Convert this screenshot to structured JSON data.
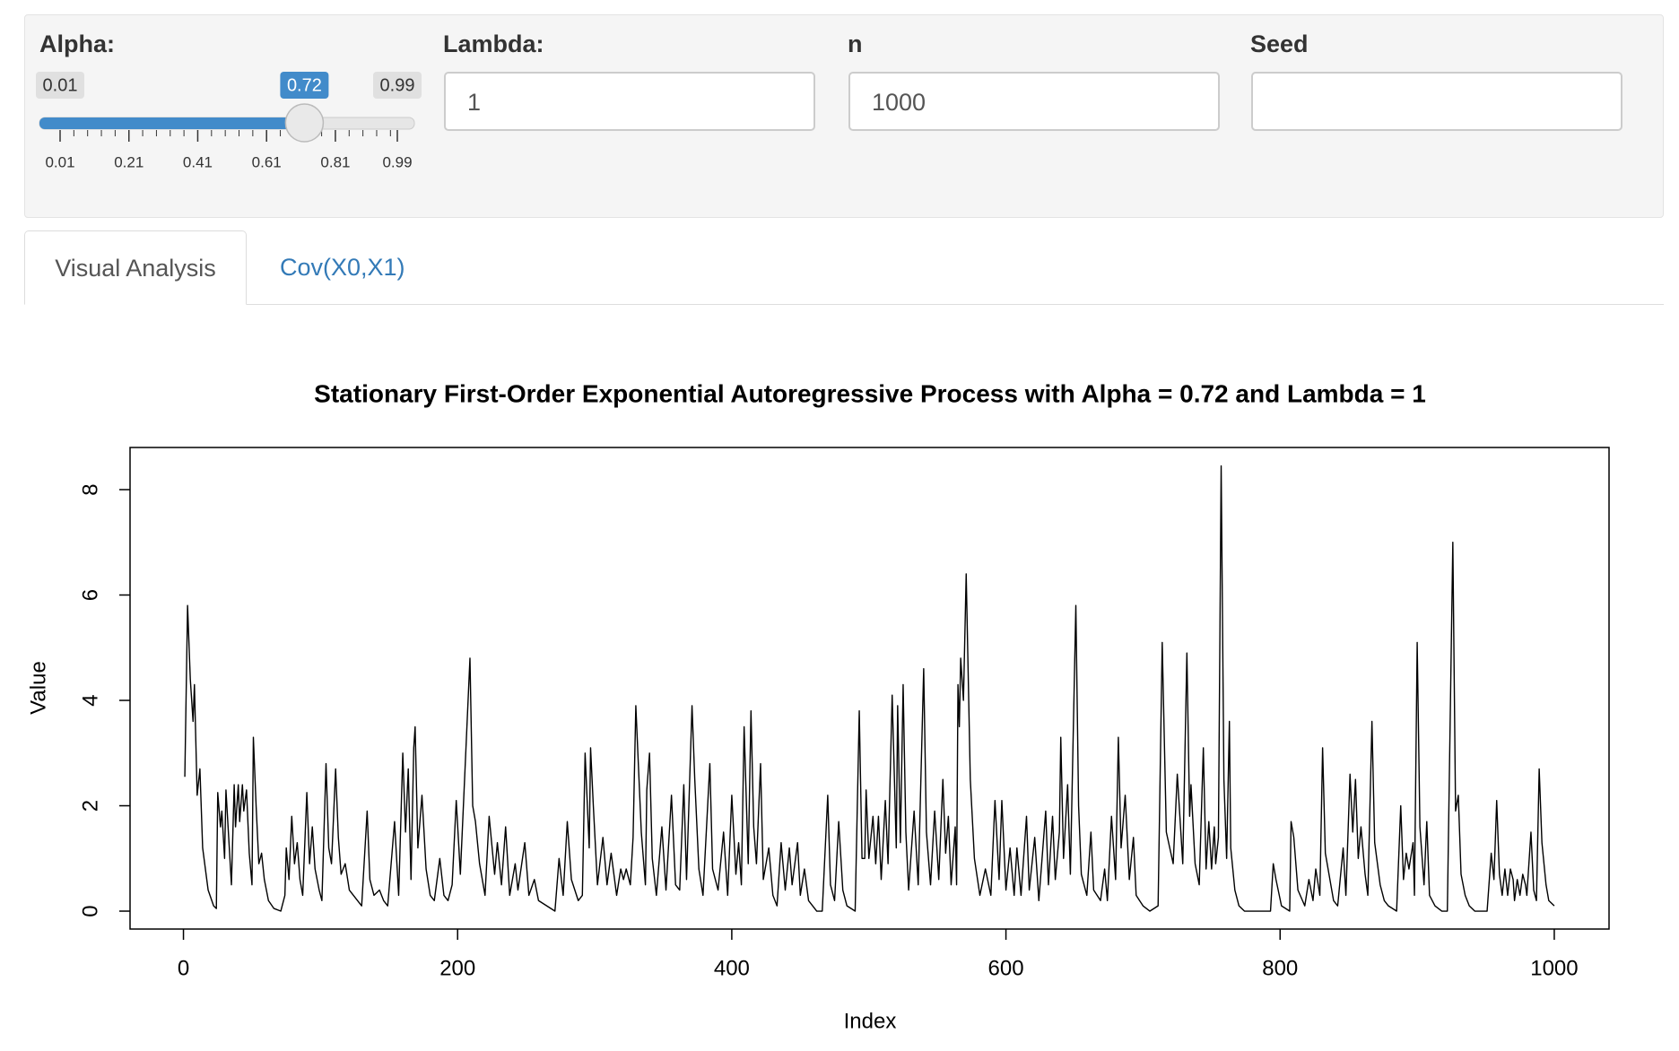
{
  "controls": {
    "alpha": {
      "label": "Alpha:",
      "min": 0.01,
      "max": 0.99,
      "value": 0.72,
      "ticks": [
        0.01,
        0.21,
        0.41,
        0.61,
        0.81,
        0.99
      ]
    },
    "lambda": {
      "label": "Lambda:",
      "value": "1"
    },
    "n": {
      "label": "n",
      "value": "1000"
    },
    "seed": {
      "label": "Seed"
    }
  },
  "tabs": [
    "Visual Analysis",
    "Cov(X0,X1)"
  ],
  "chart_data": {
    "type": "line",
    "title": "Stationary First-Order Exponential Autoregressive Process with Alpha = 0.72 and Lambda = 1",
    "xlabel": "Index",
    "ylabel": "Value",
    "color": "#000000",
    "xlim": [
      -38.96,
      1039.96
    ],
    "ylim": [
      -0.34,
      8.8
    ],
    "xticks": [
      0,
      200,
      400,
      600,
      800,
      1000
    ],
    "yticks": [
      0,
      2,
      4,
      6,
      8
    ],
    "x": [
      1,
      3,
      5,
      7,
      8,
      10,
      12,
      14,
      18,
      22,
      24,
      25,
      27,
      28,
      30,
      31,
      33,
      35,
      37,
      38,
      40,
      41,
      43,
      44,
      46,
      48,
      50,
      51,
      53,
      55,
      57,
      59,
      62,
      66,
      71,
      74,
      75,
      77,
      79,
      81,
      83,
      85,
      87,
      90,
      92,
      94,
      96,
      99,
      101,
      104,
      106,
      108,
      111,
      113,
      115,
      118,
      121,
      124,
      127,
      130,
      134,
      136,
      139,
      143,
      146,
      149,
      154,
      157,
      160,
      162,
      164,
      166,
      168,
      169,
      171,
      174,
      177,
      180,
      183,
      187,
      190,
      193,
      196,
      199,
      202,
      209,
      211,
      213,
      216,
      220,
      223,
      227,
      229,
      232,
      235,
      238,
      242,
      244,
      249,
      252,
      256,
      259,
      265,
      271,
      274,
      277,
      280,
      283,
      288,
      291,
      293,
      296,
      297,
      299,
      302,
      306,
      309,
      312,
      316,
      319,
      321,
      323,
      326,
      328,
      330,
      334,
      337,
      338,
      340,
      342,
      345,
      349,
      352,
      356,
      359,
      362,
      365,
      367,
      371,
      373,
      376,
      379,
      384,
      386,
      390,
      394,
      397,
      400,
      403,
      405,
      407,
      409,
      412,
      414,
      416,
      418,
      421,
      423,
      427,
      430,
      433,
      436,
      439,
      442,
      444,
      448,
      450,
      453,
      456,
      462,
      466,
      470,
      472,
      475,
      478,
      481,
      484,
      490,
      493,
      495,
      497,
      498,
      500,
      503,
      505,
      507,
      509,
      512,
      514,
      517,
      520,
      521,
      523,
      525,
      527,
      529,
      533,
      536,
      540,
      542,
      545,
      548,
      551,
      554,
      556,
      558,
      560,
      563,
      564,
      565,
      566,
      567,
      569,
      571,
      574,
      577,
      581,
      585,
      589,
      592,
      595,
      597,
      600,
      603,
      606,
      608,
      611,
      615,
      617,
      621,
      624,
      629,
      631,
      634,
      636,
      639,
      640,
      642,
      645,
      647,
      651,
      653,
      655,
      659,
      662,
      664,
      669,
      672,
      674,
      677,
      680,
      682,
      684,
      687,
      690,
      693,
      695,
      700,
      705,
      711,
      714,
      717,
      722,
      725,
      729,
      732,
      734,
      735,
      738,
      741,
      744,
      746,
      748,
      750,
      752,
      753,
      755,
      757,
      759,
      761,
      763,
      764,
      767,
      770,
      774,
      782,
      789,
      793,
      795,
      797,
      801,
      807,
      808,
      810,
      813,
      818,
      821,
      824,
      826,
      829,
      831,
      833,
      837,
      839,
      842,
      846,
      848,
      851,
      853,
      855,
      857,
      859,
      862,
      864,
      867,
      869,
      873,
      876,
      879,
      885,
      888,
      890,
      892,
      894,
      897,
      898,
      900,
      902,
      905,
      907,
      909,
      913,
      918,
      922,
      926,
      928,
      930,
      932,
      935,
      938,
      942,
      949,
      951,
      954,
      956,
      958,
      960,
      962,
      964,
      966,
      968,
      970,
      971,
      973,
      975,
      977,
      979,
      980,
      983,
      985,
      987,
      989,
      991,
      994,
      996,
      1000
    ],
    "values": [
      2.55,
      5.8,
      4.4,
      3.6,
      4.3,
      2.2,
      2.7,
      1.2,
      0.4,
      0.1,
      0.05,
      2.25,
      1.6,
      1.9,
      1.0,
      2.3,
      1.4,
      0.5,
      2.4,
      1.6,
      2.4,
      1.7,
      2.4,
      1.9,
      2.3,
      1.1,
      0.5,
      3.3,
      2.0,
      0.9,
      1.1,
      0.6,
      0.2,
      0.05,
      0.0,
      0.3,
      1.2,
      0.6,
      1.8,
      0.9,
      1.3,
      0.6,
      0.3,
      2.25,
      0.9,
      1.6,
      0.8,
      0.4,
      0.2,
      2.8,
      1.2,
      0.9,
      2.7,
      1.4,
      0.7,
      0.9,
      0.4,
      0.3,
      0.2,
      0.1,
      1.9,
      0.6,
      0.3,
      0.4,
      0.2,
      0.1,
      1.7,
      0.3,
      3.0,
      1.5,
      2.7,
      0.6,
      3.1,
      3.5,
      1.2,
      2.2,
      0.8,
      0.3,
      0.2,
      1.0,
      0.3,
      0.2,
      0.5,
      2.1,
      0.7,
      4.8,
      2.0,
      1.7,
      0.9,
      0.3,
      1.8,
      0.7,
      1.3,
      0.5,
      1.6,
      0.3,
      0.9,
      0.4,
      1.3,
      0.3,
      0.6,
      0.2,
      0.1,
      0.0,
      1.0,
      0.3,
      1.7,
      0.6,
      0.2,
      0.3,
      3.0,
      1.2,
      3.1,
      2.0,
      0.5,
      1.4,
      0.5,
      1.1,
      0.3,
      0.8,
      0.6,
      0.8,
      0.5,
      1.4,
      3.9,
      1.5,
      0.5,
      2.3,
      3.0,
      1.0,
      0.3,
      1.6,
      0.4,
      2.2,
      0.5,
      0.4,
      2.4,
      0.6,
      3.9,
      2.5,
      0.8,
      0.3,
      2.8,
      0.8,
      0.4,
      1.5,
      0.3,
      2.2,
      0.7,
      1.3,
      0.5,
      3.5,
      0.9,
      3.8,
      1.6,
      0.9,
      2.8,
      0.6,
      1.2,
      0.3,
      0.1,
      1.3,
      0.4,
      1.2,
      0.5,
      1.3,
      0.3,
      0.8,
      0.2,
      0.0,
      0.0,
      2.2,
      0.5,
      0.2,
      1.7,
      0.4,
      0.1,
      0.0,
      3.8,
      1.0,
      1.0,
      2.3,
      1.0,
      1.8,
      0.9,
      1.8,
      0.6,
      2.1,
      0.9,
      4.1,
      1.2,
      3.9,
      1.3,
      4.3,
      1.5,
      0.4,
      1.9,
      0.5,
      4.6,
      1.5,
      0.5,
      1.9,
      0.6,
      2.5,
      1.1,
      1.8,
      0.5,
      1.6,
      0.5,
      4.3,
      3.5,
      4.8,
      4.0,
      6.4,
      2.5,
      1.0,
      0.3,
      0.8,
      0.3,
      2.1,
      0.6,
      2.1,
      0.4,
      1.2,
      0.3,
      1.2,
      0.3,
      1.8,
      0.4,
      1.4,
      0.2,
      1.9,
      0.5,
      1.8,
      0.6,
      1.5,
      3.3,
      1.0,
      2.4,
      0.7,
      5.8,
      2.0,
      0.7,
      0.3,
      1.5,
      0.4,
      0.2,
      0.8,
      0.2,
      1.8,
      0.6,
      3.3,
      1.2,
      2.2,
      0.6,
      1.4,
      0.3,
      0.1,
      0.0,
      0.1,
      5.1,
      1.5,
      0.9,
      2.6,
      0.9,
      4.9,
      1.8,
      2.4,
      0.9,
      0.5,
      3.1,
      0.8,
      1.7,
      0.8,
      1.6,
      0.9,
      1.4,
      8.45,
      2.5,
      1.0,
      3.6,
      1.2,
      0.4,
      0.1,
      0.0,
      0.0,
      0.0,
      0.0,
      0.9,
      0.6,
      0.1,
      0.0,
      1.7,
      1.4,
      0.4,
      0.1,
      0.6,
      0.2,
      0.8,
      0.3,
      3.1,
      1.1,
      0.5,
      0.2,
      0.1,
      1.2,
      0.3,
      2.6,
      1.5,
      2.5,
      1.0,
      1.6,
      0.7,
      0.3,
      3.6,
      1.3,
      0.5,
      0.2,
      0.1,
      0.0,
      2.0,
      0.6,
      1.1,
      0.8,
      1.3,
      0.3,
      5.1,
      1.6,
      0.5,
      1.7,
      0.3,
      0.1,
      0.0,
      0.0,
      7.0,
      1.9,
      2.2,
      0.7,
      0.3,
      0.1,
      0.0,
      0.0,
      0.0,
      1.1,
      0.6,
      2.1,
      0.7,
      0.3,
      0.8,
      0.3,
      0.8,
      0.6,
      0.2,
      0.6,
      0.3,
      0.7,
      0.5,
      0.3,
      1.5,
      0.4,
      0.2,
      2.7,
      1.3,
      0.5,
      0.2,
      0.1
    ]
  }
}
